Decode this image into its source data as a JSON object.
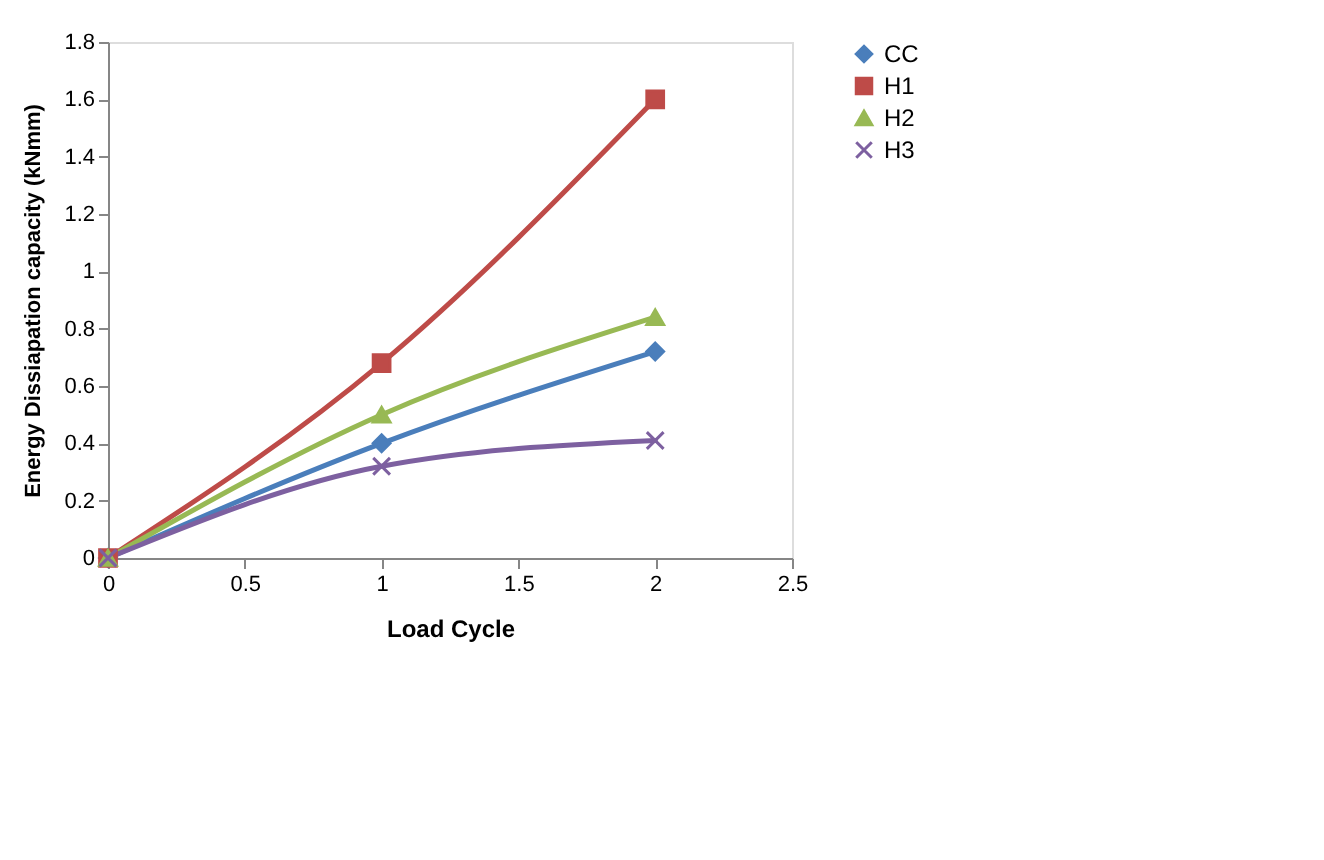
{
  "chart_data": {
    "type": "line",
    "xlabel": "Load Cycle",
    "ylabel": "Energy Dissiapation capacity (kNmm)",
    "x": [
      0,
      1,
      2
    ],
    "series": [
      {
        "name": "CC",
        "color": "#4a7ebb",
        "marker": "diamond",
        "values": [
          0,
          0.4,
          0.72
        ]
      },
      {
        "name": "H1",
        "color": "#be4b48",
        "marker": "square",
        "values": [
          0,
          0.68,
          1.6
        ]
      },
      {
        "name": "H2",
        "color": "#98b954",
        "marker": "triangle",
        "values": [
          0,
          0.5,
          0.84
        ]
      },
      {
        "name": "H3",
        "color": "#7d60a0",
        "marker": "cross",
        "values": [
          0,
          0.32,
          0.41
        ]
      }
    ],
    "xlim": [
      0,
      2.5
    ],
    "xticks": [
      0,
      0.5,
      1,
      1.5,
      2,
      2.5
    ],
    "ylim": [
      0,
      1.8
    ],
    "yticks": [
      0,
      0.2,
      0.4,
      0.6,
      0.8,
      1,
      1.2,
      1.4,
      1.6,
      1.8
    ],
    "grid": false,
    "legend": "right",
    "line_style": "solid"
  }
}
